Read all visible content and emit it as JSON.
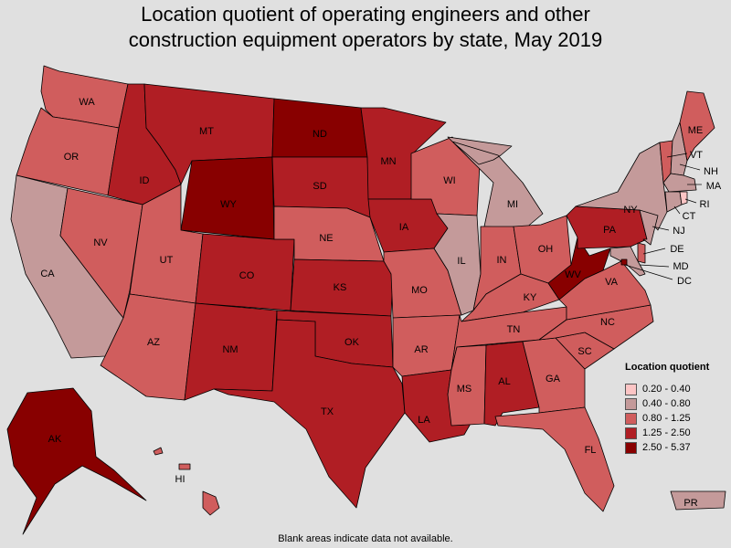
{
  "title_line1": "Location quotient of operating engineers and other",
  "title_line2": "construction equipment operators by state, May 2019",
  "legend": {
    "title": "Location quotient",
    "items": [
      {
        "label": "0.20 - 0.40",
        "color": "#fcc5c5"
      },
      {
        "label": "0.40 - 0.80",
        "color": "#c49a9a"
      },
      {
        "label": "0.80 - 1.25",
        "color": "#d05d5d"
      },
      {
        "label": "1.25 - 2.50",
        "color": "#b01e24"
      },
      {
        "label": "2.50 - 5.37",
        "color": "#880000"
      }
    ]
  },
  "footer_note": "Blank areas indicate data not available.",
  "states": {
    "WA": {
      "label": "WA",
      "class": 2
    },
    "OR": {
      "label": "OR",
      "class": 2
    },
    "CA": {
      "label": "CA",
      "class": 1
    },
    "NV": {
      "label": "NV",
      "class": 2
    },
    "ID": {
      "label": "ID",
      "class": 3
    },
    "MT": {
      "label": "MT",
      "class": 3
    },
    "WY": {
      "label": "WY",
      "class": 4
    },
    "UT": {
      "label": "UT",
      "class": 2
    },
    "AZ": {
      "label": "AZ",
      "class": 2
    },
    "CO": {
      "label": "CO",
      "class": 3
    },
    "NM": {
      "label": "NM",
      "class": 3
    },
    "ND": {
      "label": "ND",
      "class": 4
    },
    "SD": {
      "label": "SD",
      "class": 3
    },
    "NE": {
      "label": "NE",
      "class": 2
    },
    "KS": {
      "label": "KS",
      "class": 3
    },
    "OK": {
      "label": "OK",
      "class": 3
    },
    "TX": {
      "label": "TX",
      "class": 3
    },
    "MN": {
      "label": "MN",
      "class": 3
    },
    "IA": {
      "label": "IA",
      "class": 3
    },
    "MO": {
      "label": "MO",
      "class": 2
    },
    "AR": {
      "label": "AR",
      "class": 2
    },
    "LA": {
      "label": "LA",
      "class": 3
    },
    "WI": {
      "label": "WI",
      "class": 2
    },
    "IL": {
      "label": "IL",
      "class": 1
    },
    "MI": {
      "label": "MI",
      "class": 1
    },
    "IN": {
      "label": "IN",
      "class": 2
    },
    "OH": {
      "label": "OH",
      "class": 2
    },
    "KY": {
      "label": "KY",
      "class": 2
    },
    "TN": {
      "label": "TN",
      "class": 2
    },
    "MS": {
      "label": "MS",
      "class": 2
    },
    "AL": {
      "label": "AL",
      "class": 3
    },
    "GA": {
      "label": "GA",
      "class": 2
    },
    "FL": {
      "label": "FL",
      "class": 2
    },
    "SC": {
      "label": "SC",
      "class": 2
    },
    "NC": {
      "label": "NC",
      "class": 2
    },
    "VA": {
      "label": "VA",
      "class": 2
    },
    "WV": {
      "label": "WV",
      "class": 4
    },
    "PA": {
      "label": "PA",
      "class": 3
    },
    "NY": {
      "label": "NY",
      "class": 1
    },
    "NJ": {
      "label": "NJ",
      "class": 1
    },
    "DE": {
      "label": "DE",
      "class": 2
    },
    "MD": {
      "label": "MD",
      "class": 1
    },
    "DC": {
      "label": "DC",
      "class": 4
    },
    "VT": {
      "label": "VT",
      "class": 2
    },
    "NH": {
      "label": "NH",
      "class": 1
    },
    "ME": {
      "label": "ME",
      "class": 2
    },
    "MA": {
      "label": "MA",
      "class": 1
    },
    "CT": {
      "label": "CT",
      "class": 1
    },
    "RI": {
      "label": "RI",
      "class": 0
    },
    "AK": {
      "label": "AK",
      "class": 4
    },
    "HI": {
      "label": "HI",
      "class": 2
    },
    "PR": {
      "label": "PR",
      "class": 1
    }
  }
}
